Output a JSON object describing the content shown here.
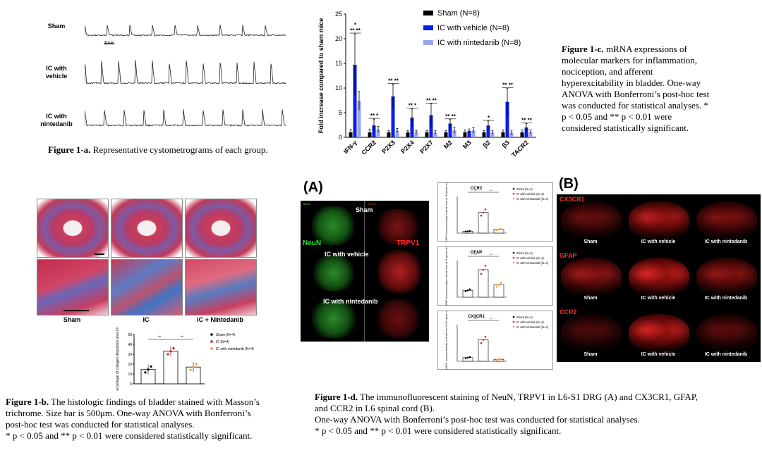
{
  "fig1a": {
    "traces": [
      {
        "label_line1": "Sham",
        "label_line2": ""
      },
      {
        "label_line1": "IC with",
        "label_line2": "vehicle"
      },
      {
        "label_line1": "IC with",
        "label_line2": "nintedanib"
      }
    ],
    "scale_bar": "2min",
    "caption_bold": "Figure 1-a.",
    "caption_text": " Representative  cystometrograms of each group."
  },
  "chart_data": {
    "type": "bar",
    "ylabel": "Fold increase compared to sham mice",
    "ylim": [
      0,
      25
    ],
    "yticks": [
      0,
      5,
      10,
      15,
      20,
      25
    ],
    "categories": [
      "IFN-γ",
      "CCR2",
      "P2X3",
      "P2X4",
      "P2X7",
      "M2",
      "M3",
      "β2",
      "β3",
      "TACR2"
    ],
    "series": [
      {
        "name": "Sham (N=8)",
        "color": "#000000",
        "values": [
          1,
          1,
          1,
          1,
          1,
          1,
          1,
          1,
          1,
          1
        ],
        "err": [
          0.6,
          0.6,
          0.4,
          0.4,
          0.4,
          0.4,
          0.5,
          0.4,
          0.5,
          0.5
        ]
      },
      {
        "name": "IC with vehicle (N=8)",
        "color": "#0b1ee8",
        "values": [
          14.7,
          2.4,
          8.3,
          4.0,
          4.5,
          2.8,
          1.3,
          2.4,
          7.2,
          2.0
        ],
        "err": [
          6.3,
          1.3,
          2.5,
          1.8,
          2.3,
          0.8,
          0.4,
          0.9,
          2.7,
          0.8
        ]
      },
      {
        "name": "IC with nintedanib (N=8)",
        "color": "#9aa3ef",
        "values": [
          7.4,
          1.6,
          1.4,
          1.1,
          1.0,
          1.4,
          1.4,
          1.0,
          0.9,
          1.1
        ],
        "err": [
          1.9,
          0.6,
          0.4,
          0.3,
          0.4,
          0.6,
          0.6,
          0.4,
          0.4,
          0.4
        ]
      }
    ],
    "annotations": [
      {
        "category": "IFN-γ",
        "top": "*",
        "marks": "** **"
      },
      {
        "category": "CCR2",
        "marks": "** *"
      },
      {
        "category": "P2X3",
        "marks": "** **"
      },
      {
        "category": "P2X4",
        "marks": "** *"
      },
      {
        "category": "P2X7",
        "marks": "** **"
      },
      {
        "category": "M2",
        "marks": "** **"
      },
      {
        "category": "β2",
        "marks": "*"
      },
      {
        "category": "β3",
        "marks": "** **"
      },
      {
        "category": "TACR2",
        "marks": "** **"
      }
    ],
    "legend_position": "top-right"
  },
  "fig1c": {
    "caption_bold": "Figure 1-c.",
    "caption_lines": [
      " mRNA expressions of",
      "molecular markers for inflammation,",
      "nociception, and afferent",
      "hyperexcitability  in bladder. One-way",
      "ANOVA with Bonferroni’s post-hoc test",
      "was conducted for statistical analyses. *",
      "p < 0.05 and ** p < 0.01 were",
      "considered statistically  significant."
    ]
  },
  "fig1b": {
    "groups": [
      "Sham",
      "IC",
      "IC + Nintedanib"
    ],
    "chart": {
      "ylabel": "Percentage of collagen deposition area (%)",
      "ylim": [
        0,
        50
      ],
      "yticks": [
        0,
        10,
        20,
        30,
        40,
        50
      ],
      "values": [
        14.5,
        33,
        17
      ],
      "colors": [
        "#000000",
        "#e8141b",
        "#f29a2e"
      ],
      "legend": [
        "Sham (N=4)",
        "IC (N=4)",
        "IC with nintedanib (N=4)"
      ],
      "sig": [
        "**",
        "**"
      ]
    },
    "caption_bold": "Figure 1-b.",
    "caption_lines": [
      " The histologic findings of bladder stained with Masson’s",
      "trichrome.  Size bar is 500μm.   One-way ANOVA with Bonferroni’s",
      "post-hoc test was conducted for statistical  analyses.",
      "* p < 0.05 and ** p < 0.01 were considered statistically  significant."
    ]
  },
  "fig1d": {
    "panelA": "(A)",
    "panelB": "(B)",
    "neun": "NeuN",
    "trpv1": "TRPV1",
    "small_neun": "NeuN",
    "small_trpv1": "TRPV1",
    "rows": [
      "Sham",
      "IC with vehicle",
      "IC with nintedanib"
    ],
    "mini_charts": [
      {
        "title": "CCR2",
        "ylabel": "% of CCR2 immunoreactivity in dorsal horn of L6 spinal cord",
        "values": [
          0.4,
          4.5,
          0.8
        ],
        "ylim": [
          0,
          8
        ],
        "sig": [
          "**",
          "**"
        ]
      },
      {
        "title": "GFAP",
        "ylabel": "% of GFAP immunoreactivity in dorsal horn of L6 spinal cord",
        "values": [
          1.5,
          6.0,
          2.7
        ],
        "ylim": [
          0,
          8
        ],
        "sig": [
          "**",
          "**"
        ]
      },
      {
        "title": "CX3CR1",
        "ylabel": "% of CX3CR1 immunoreactivity in dorsal horn of L6 spinal cord",
        "values": [
          1.2,
          7.0,
          0.6
        ],
        "ylim": [
          0,
          12
        ],
        "sig": [
          "**",
          "**"
        ]
      }
    ],
    "mini_legend": [
      "Sham (N=4)",
      "IC with vehicle (N=4)",
      "IC with nintedanib (N=4)"
    ],
    "panelB_rows": [
      "CX3CR1",
      "GFAP",
      "CCR2"
    ],
    "panelB_cols": [
      "Sham",
      "IC with vehicle",
      "IC with nintedanib"
    ],
    "caption_bold": "Figure 1-d.",
    "caption_lines": [
      " The immunofluorescent  staining  of  NeuN, TRPV1 in L6-S1 DRG (A) and CX3CR1, GFAP,",
      "and CCR2 in L6 spinal cord (B).",
      "One-way ANOVA with Bonferroni’s post-hoc test was conducted for statistical analyses.",
      "* p < 0.05 and ** p < 0.01 were considered statistically  significant."
    ]
  }
}
